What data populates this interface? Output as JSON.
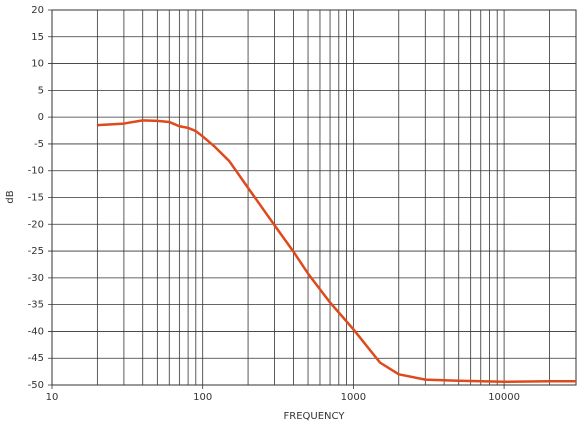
{
  "chart_data": {
    "type": "line",
    "x_label": "FREQUENCY",
    "y_label": "dB",
    "x": [
      20,
      30,
      40,
      50,
      60,
      70,
      80,
      90,
      100,
      120,
      150,
      200,
      300,
      400,
      500,
      700,
      1000,
      1500,
      2000,
      3000,
      5000,
      10000,
      20000,
      30000
    ],
    "values": [
      -1.5,
      -1.2,
      -0.6,
      -0.7,
      -0.9,
      -1.7,
      -2.0,
      -2.6,
      -3.6,
      -5.5,
      -8.2,
      -13.2,
      -20.2,
      -25.1,
      -29.2,
      -34.6,
      -39.6,
      -45.8,
      -48.0,
      -49.0,
      -49.2,
      -49.4,
      -49.3,
      -49.3
    ],
    "color": "#e0491b",
    "x_log": true,
    "xlim": [
      10,
      30000
    ],
    "xticks": [
      10,
      100,
      1000,
      10000
    ],
    "xminor": [
      20,
      30,
      40,
      50,
      60,
      70,
      80,
      90,
      200,
      300,
      400,
      500,
      600,
      700,
      800,
      900,
      2000,
      3000,
      4000,
      5000,
      6000,
      7000,
      8000,
      9000,
      20000
    ],
    "ylim": [
      -50,
      20
    ],
    "yticks": [
      20,
      15,
      10,
      5,
      0,
      -5,
      -10,
      -15,
      -20,
      -25,
      -30,
      -35,
      -40,
      -45,
      -50
    ],
    "grid": true
  }
}
